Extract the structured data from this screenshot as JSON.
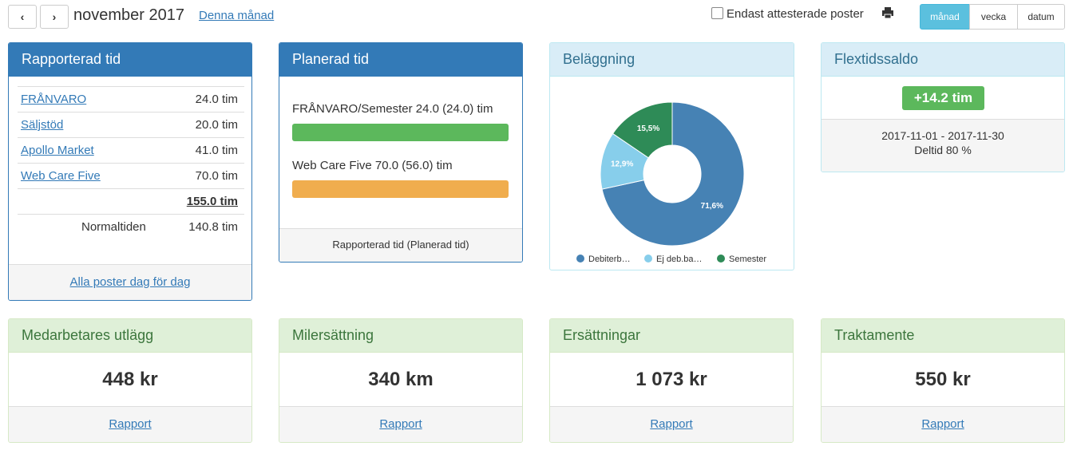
{
  "header": {
    "month": "november 2017",
    "current_link": "Denna månad",
    "filter_label": "Endast attesterade poster",
    "views": [
      "månad",
      "vecka",
      "datum"
    ]
  },
  "reported": {
    "title": "Rapporterad tid",
    "rows": [
      [
        "FRÅNVARO",
        "24.0 tim"
      ],
      [
        "Säljstöd",
        "20.0 tim"
      ],
      [
        "Apollo Market",
        "41.0 tim"
      ],
      [
        "Web Care Five",
        "70.0 tim"
      ]
    ],
    "total": "155.0 tim",
    "normal": [
      "Normaltiden",
      "140.8 tim"
    ],
    "footer": "Alla poster dag för dag"
  },
  "planned": {
    "title": "Planerad tid",
    "items": [
      "FRÅNVARO/Semester 24.0 (24.0) tim",
      "Web Care Five 70.0 (56.0) tim"
    ],
    "footer": "Rapporterad tid (Planerad tid)"
  },
  "occupancy": {
    "title": "Beläggning",
    "chart_data": {
      "type": "pie",
      "categories": [
        "Debiterb…",
        "Ej deb.ba…",
        "Semester"
      ],
      "values": [
        71.6,
        12.9,
        15.5
      ],
      "value_labels": [
        "71,6%",
        "12,9%",
        "15,5%"
      ],
      "colors": [
        "#4682b4",
        "#87ceeb",
        "#2e8b57"
      ]
    }
  },
  "flex": {
    "title": "Flextidssaldo",
    "balance": "+14.2 tim",
    "period": "2017-11-01 - 2017-11-30",
    "note": "Deltid 80 %"
  },
  "summaries": [
    {
      "title": "Medarbetares utlägg",
      "value": "448 kr",
      "link": "Rapport"
    },
    {
      "title": "Milersättning",
      "value": "340 km",
      "link": "Rapport"
    },
    {
      "title": "Ersättningar",
      "value": "1 073 kr",
      "link": "Rapport"
    },
    {
      "title": "Traktamente",
      "value": "550 kr",
      "link": "Rapport"
    }
  ]
}
